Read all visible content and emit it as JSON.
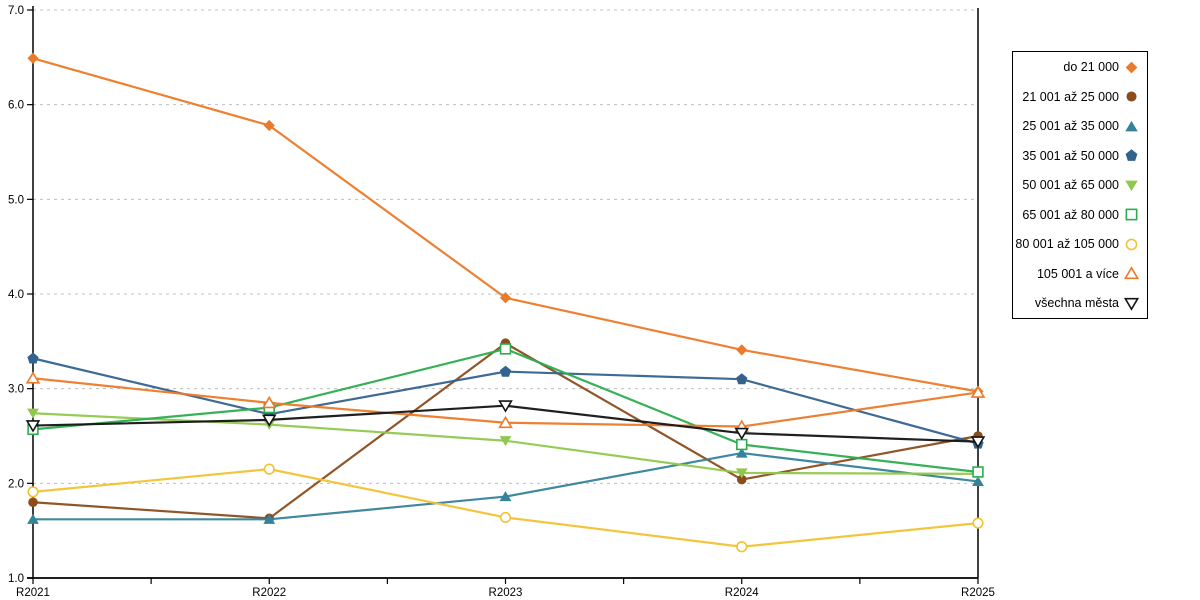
{
  "chart_data": {
    "type": "line",
    "title": "",
    "xlabel": "",
    "ylabel": "",
    "categories": [
      "R2021",
      "R2022",
      "R2023",
      "R2024",
      "R2025"
    ],
    "ylim": [
      1.0,
      7.0
    ],
    "yticks": [
      "1.0",
      "2.0",
      "3.0",
      "4.0",
      "5.0",
      "6.0",
      "7.0"
    ],
    "grid": "dashed-horizontal",
    "legend_position": "right",
    "axis_color": "#000000",
    "grid_color": "#bfbfbf",
    "series": [
      {
        "name": "do 21 000",
        "color": "#EC7A28",
        "marker": "diamond",
        "marker_style": "filled",
        "values": [
          6.49,
          5.78,
          3.96,
          3.41,
          2.97
        ]
      },
      {
        "name": "21 001 až 25 000",
        "color": "#8B4D1C",
        "marker": "circle",
        "marker_style": "filled",
        "values": [
          1.8,
          1.63,
          3.48,
          2.04,
          2.5
        ]
      },
      {
        "name": "25 001 až 35 000",
        "color": "#35829B",
        "marker": "triangle-up",
        "marker_style": "filled",
        "values": [
          1.62,
          1.62,
          1.86,
          2.32,
          2.02
        ]
      },
      {
        "name": "35 001 až 50 000",
        "color": "#34628E",
        "marker": "pentagon",
        "marker_style": "filled",
        "values": [
          3.32,
          2.73,
          3.18,
          3.1,
          2.42
        ]
      },
      {
        "name": "50 001 až 65 000",
        "color": "#90C84C",
        "marker": "triangle-down",
        "marker_style": "filled",
        "values": [
          2.74,
          2.62,
          2.45,
          2.11,
          2.1
        ]
      },
      {
        "name": "65 001 až 80 000",
        "color": "#2BAD4E",
        "marker": "square",
        "marker_style": "hollow",
        "values": [
          2.57,
          2.8,
          3.42,
          2.41,
          2.12
        ]
      },
      {
        "name": "80 001 až 105 000",
        "color": "#F2C233",
        "marker": "circle",
        "marker_style": "hollow",
        "values": [
          1.91,
          2.15,
          1.64,
          1.33,
          1.58
        ]
      },
      {
        "name": "105 001 a více",
        "color": "#EC7A28",
        "marker": "triangle-up",
        "marker_style": "hollow",
        "values": [
          3.11,
          2.85,
          2.64,
          2.6,
          2.96
        ]
      },
      {
        "name": "všechna města",
        "color": "#141414",
        "marker": "triangle-down",
        "marker_style": "hollow",
        "values": [
          2.61,
          2.67,
          2.82,
          2.53,
          2.44
        ]
      }
    ]
  }
}
